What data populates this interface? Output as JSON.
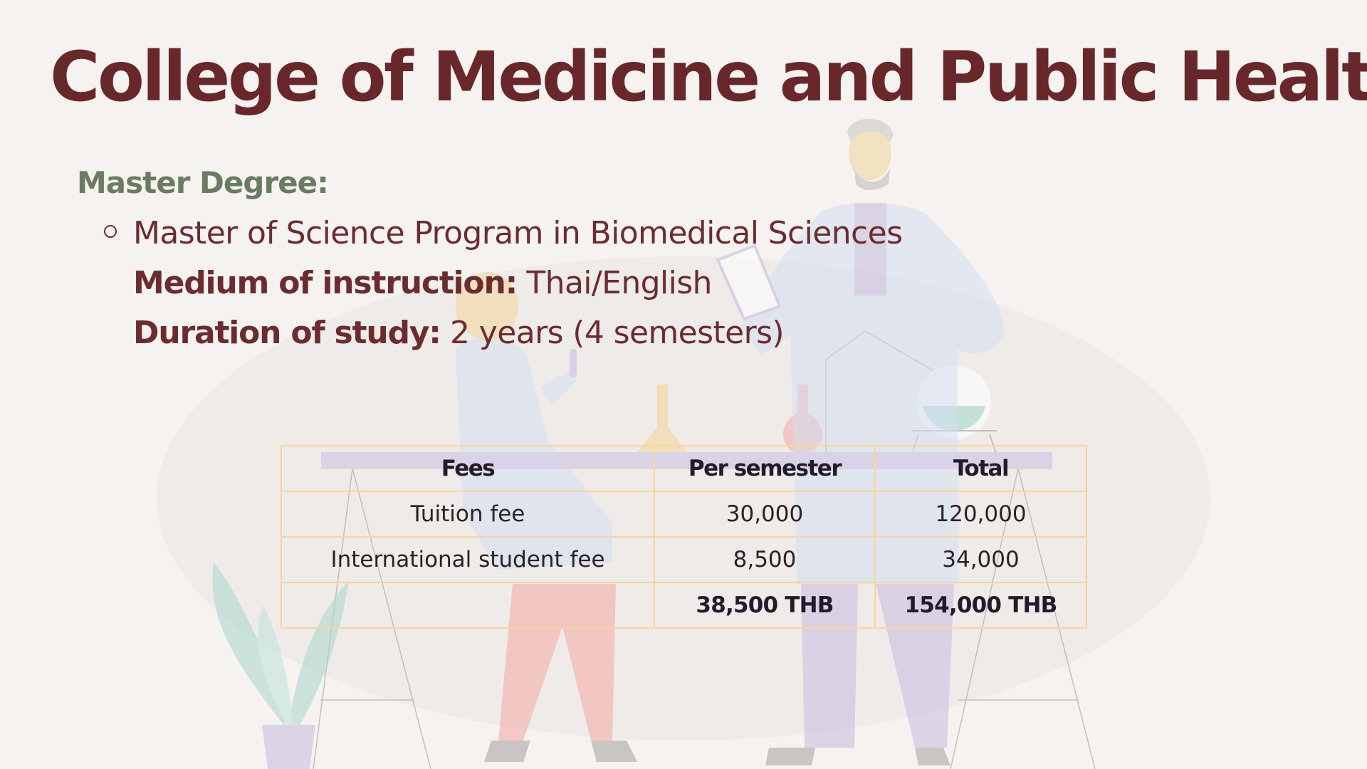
{
  "slide": {
    "title": "College of Medicine and Public Health",
    "section_heading": "Master Degree:",
    "program": {
      "name": "Master of Science Program in Biomedical Sciences",
      "medium_label": "Medium of instruction:",
      "medium_value": "Thai/English",
      "duration_label": "Duration of study:",
      "duration_value": "2 years (4 semesters)"
    }
  },
  "fees_table": {
    "headers": [
      "Fees",
      "Per semester",
      "Total"
    ],
    "rows": [
      [
        "Tuition fee",
        "30,000",
        "120,000"
      ],
      [
        "International student fee",
        "8,500",
        "34,000"
      ],
      [
        "",
        "38,500 THB",
        "154,000 THB"
      ]
    ]
  },
  "colors": {
    "title": "#68272a",
    "heading": "#697c62",
    "body_text": "#6b2c30",
    "table_border": "#f7d69a",
    "header_band": "#d7d0e6",
    "background": "#f5f2f0"
  },
  "illustration": {
    "icons": [
      "scientist-illustration",
      "researcher-illustration",
      "lab-flask-icon",
      "plant-icon",
      "lab-table-icon"
    ]
  }
}
